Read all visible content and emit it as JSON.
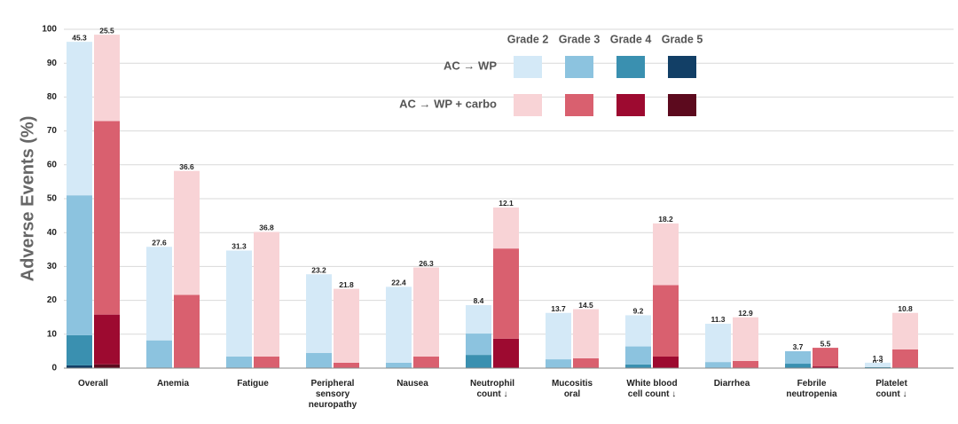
{
  "chart_data": {
    "type": "stacked-grouped-bar",
    "ylabel": "Adverse Events (%)",
    "ylim": [
      0,
      100
    ],
    "yticks": [
      0,
      10,
      20,
      30,
      40,
      50,
      60,
      70,
      80,
      90,
      100
    ],
    "grid": true,
    "categories": [
      [
        "Overall"
      ],
      [
        "Anemia"
      ],
      [
        "Fatigue"
      ],
      [
        "Peripheral",
        "sensory",
        "neuropathy"
      ],
      [
        "Nausea"
      ],
      [
        "Neutrophil",
        "count ↓"
      ],
      [
        "Mucositis",
        "oral"
      ],
      [
        "White blood",
        "cell count ↓"
      ],
      [
        "Diarrhea"
      ],
      [
        "Febrile",
        "neutropenia"
      ],
      [
        "Platelet",
        "count ↓"
      ]
    ],
    "grades": [
      "Grade 2",
      "Grade 3",
      "Grade 4",
      "Grade 5"
    ],
    "series": [
      {
        "name": "AC → WP",
        "stacks": [
          {
            "color": "#d4e9f7",
            "values": [
              45.3,
              27.6,
              31.3,
              23.2,
              22.4,
              8.4,
              13.7,
              9.2,
              11.3,
              null,
              1.3
            ]
          },
          {
            "color": "#8cc3df",
            "values": [
              41.3,
              8.2,
              3.4,
              4.5,
              1.6,
              6.3,
              2.6,
              5.3,
              1.8,
              3.7,
              null
            ]
          },
          {
            "color": "#3a90b0",
            "values": [
              8.9,
              null,
              null,
              null,
              null,
              3.9,
              null,
              1.1,
              null,
              1.3,
              0.3
            ]
          },
          {
            "color": "#123f66",
            "values": [
              0.8,
              null,
              null,
              null,
              null,
              null,
              null,
              null,
              null,
              null,
              null
            ]
          }
        ]
      },
      {
        "name": "AC → WP + carbo",
        "stacks": [
          {
            "color": "#f8d3d6",
            "values": [
              25.5,
              36.6,
              36.8,
              21.8,
              26.3,
              12.1,
              14.5,
              18.2,
              12.9,
              null,
              10.8
            ]
          },
          {
            "color": "#d9606f",
            "values": [
              57.1,
              21.6,
              3.4,
              1.6,
              3.4,
              26.6,
              2.9,
              21.1,
              2.1,
              5.5,
              5.5
            ]
          },
          {
            "color": "#9d0a30",
            "values": [
              14.7,
              null,
              null,
              null,
              null,
              8.7,
              null,
              3.4,
              null,
              0.5,
              null
            ]
          },
          {
            "color": "#5c0a1e",
            "values": [
              1.1,
              null,
              null,
              null,
              null,
              null,
              null,
              null,
              null,
              null,
              null
            ]
          }
        ]
      }
    ]
  }
}
